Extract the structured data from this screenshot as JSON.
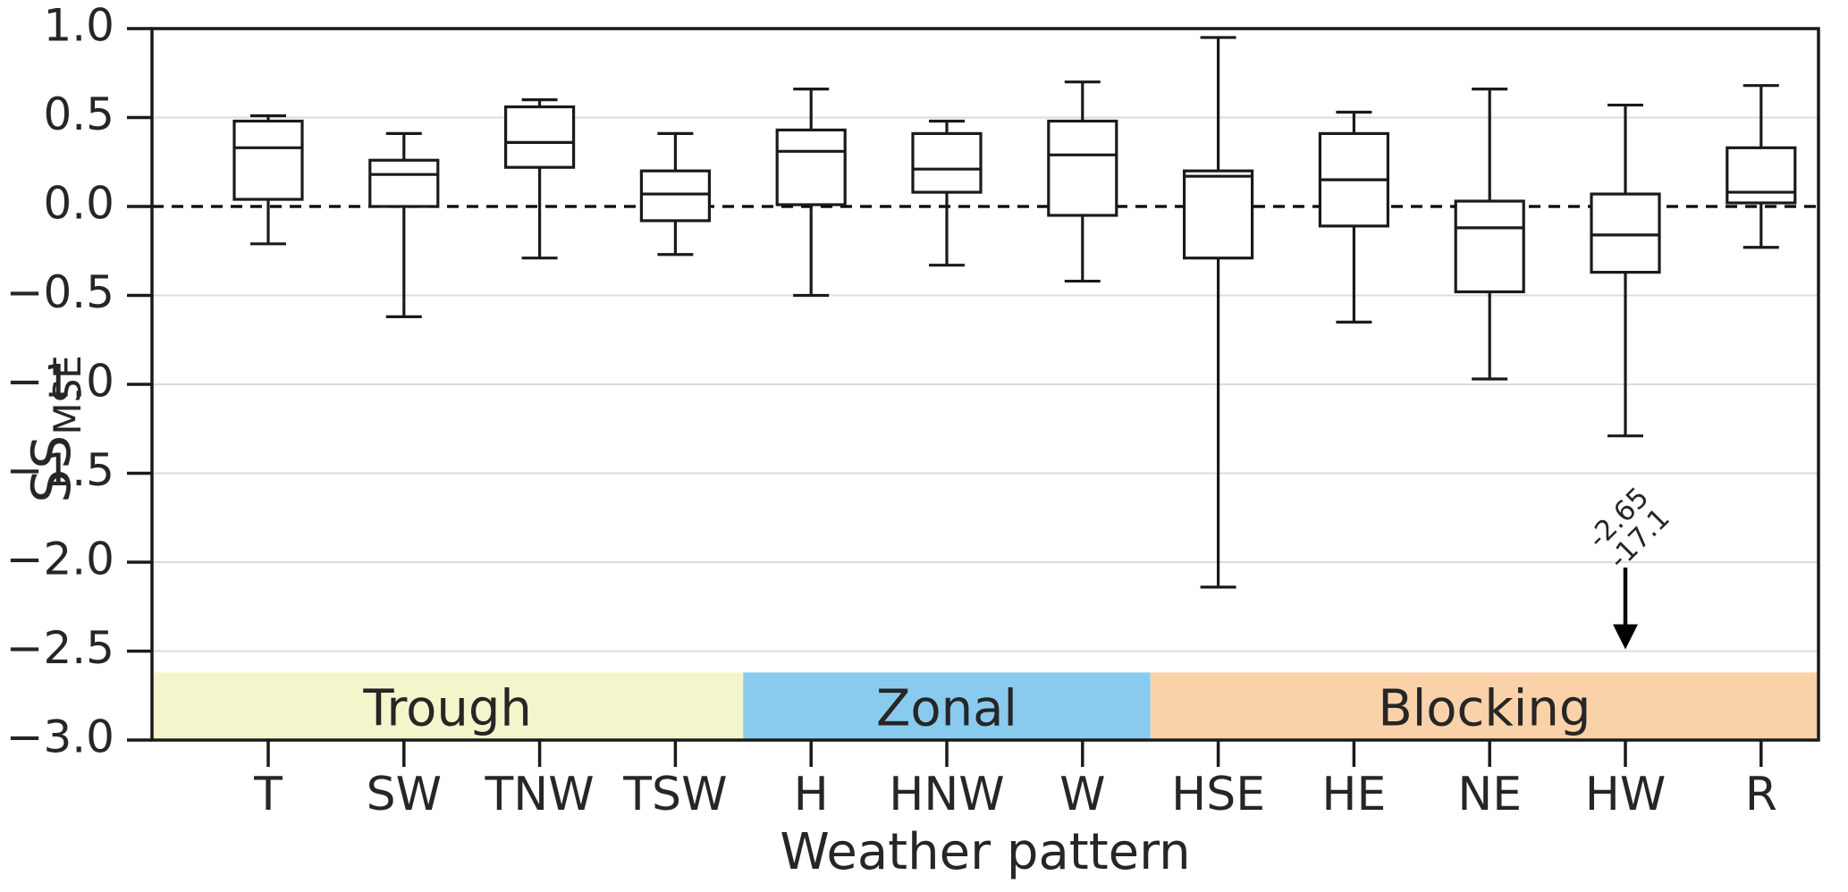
{
  "chart_data": {
    "type": "box",
    "title": "",
    "xlabel": "Weather pattern",
    "ylabel": {
      "base": "SS",
      "sub": "MSE"
    },
    "ylim": [
      -3.0,
      1.0
    ],
    "grid": "horizontal",
    "legend": null,
    "yticks": [
      {
        "value": 1.0,
        "label": "1.0"
      },
      {
        "value": 0.5,
        "label": "0.5"
      },
      {
        "value": 0.0,
        "label": "0.0"
      },
      {
        "value": -0.5,
        "label": "−0.5"
      },
      {
        "value": -1.0,
        "label": "−1.0"
      },
      {
        "value": -1.5,
        "label": "−1.5"
      },
      {
        "value": -2.0,
        "label": "−2.0"
      },
      {
        "value": -2.5,
        "label": "−2.5"
      },
      {
        "value": -3.0,
        "label": "−3.0"
      }
    ],
    "grid_values": [
      0.5,
      -0.5,
      -1.0,
      -1.5,
      -2.0,
      -2.5
    ],
    "zero_line_value": 0.0,
    "categories": [
      "T",
      "SW",
      "TNW",
      "TSW",
      "H",
      "HNW",
      "W",
      "HSE",
      "HE",
      "NE",
      "HW",
      "R"
    ],
    "boxes": [
      {
        "label": "T",
        "whisker_low": -0.21,
        "q1": 0.04,
        "median": 0.33,
        "q3": 0.48,
        "whisker_high": 0.51
      },
      {
        "label": "SW",
        "whisker_low": -0.62,
        "q1": 0.0,
        "median": 0.18,
        "q3": 0.26,
        "whisker_high": 0.41
      },
      {
        "label": "TNW",
        "whisker_low": -0.29,
        "q1": 0.22,
        "median": 0.36,
        "q3": 0.56,
        "whisker_high": 0.6
      },
      {
        "label": "TSW",
        "whisker_low": -0.27,
        "q1": -0.08,
        "median": 0.07,
        "q3": 0.2,
        "whisker_high": 0.41
      },
      {
        "label": "H",
        "whisker_low": -0.5,
        "q1": 0.01,
        "median": 0.31,
        "q3": 0.43,
        "whisker_high": 0.66
      },
      {
        "label": "HNW",
        "whisker_low": -0.33,
        "q1": 0.08,
        "median": 0.21,
        "q3": 0.41,
        "whisker_high": 0.48
      },
      {
        "label": "W",
        "whisker_low": -0.42,
        "q1": -0.05,
        "median": 0.29,
        "q3": 0.48,
        "whisker_high": 0.7
      },
      {
        "label": "HSE",
        "whisker_low": -2.14,
        "q1": -0.29,
        "median": 0.17,
        "q3": 0.2,
        "whisker_high": 0.95
      },
      {
        "label": "HE",
        "whisker_low": -0.65,
        "q1": -0.11,
        "median": 0.15,
        "q3": 0.41,
        "whisker_high": 0.53
      },
      {
        "label": "NE",
        "whisker_low": -0.97,
        "q1": -0.48,
        "median": -0.12,
        "q3": 0.03,
        "whisker_high": 0.66
      },
      {
        "label": "HW",
        "whisker_low": -1.29,
        "q1": -0.37,
        "median": -0.16,
        "q3": 0.07,
        "whisker_high": 0.57
      },
      {
        "label": "R",
        "whisker_low": -0.23,
        "q1": 0.02,
        "median": 0.08,
        "q3": 0.33,
        "whisker_high": 0.68
      }
    ],
    "groups": [
      {
        "label": "Trough",
        "color": "#F5F5CC",
        "start_index": 0,
        "end_index": 3
      },
      {
        "label": "Zonal",
        "color": "#89CBEE",
        "start_index": 4,
        "end_index": 6
      },
      {
        "label": "Blocking",
        "color": "#F9D2A9",
        "start_index": 7,
        "end_index": 11
      }
    ],
    "band_top_value": -2.62,
    "annotation": {
      "lines": [
        "-2.65",
        "-17.1"
      ],
      "category": "HW",
      "rotation_deg": -45,
      "arrow_from_value": -2.03,
      "arrow_to_value": -2.49
    },
    "colors": {
      "box_stroke": "#1a1a1a",
      "grid": "#dcdcdc",
      "zero_line": "#000000",
      "text": "#262626",
      "background": "#ffffff"
    }
  }
}
